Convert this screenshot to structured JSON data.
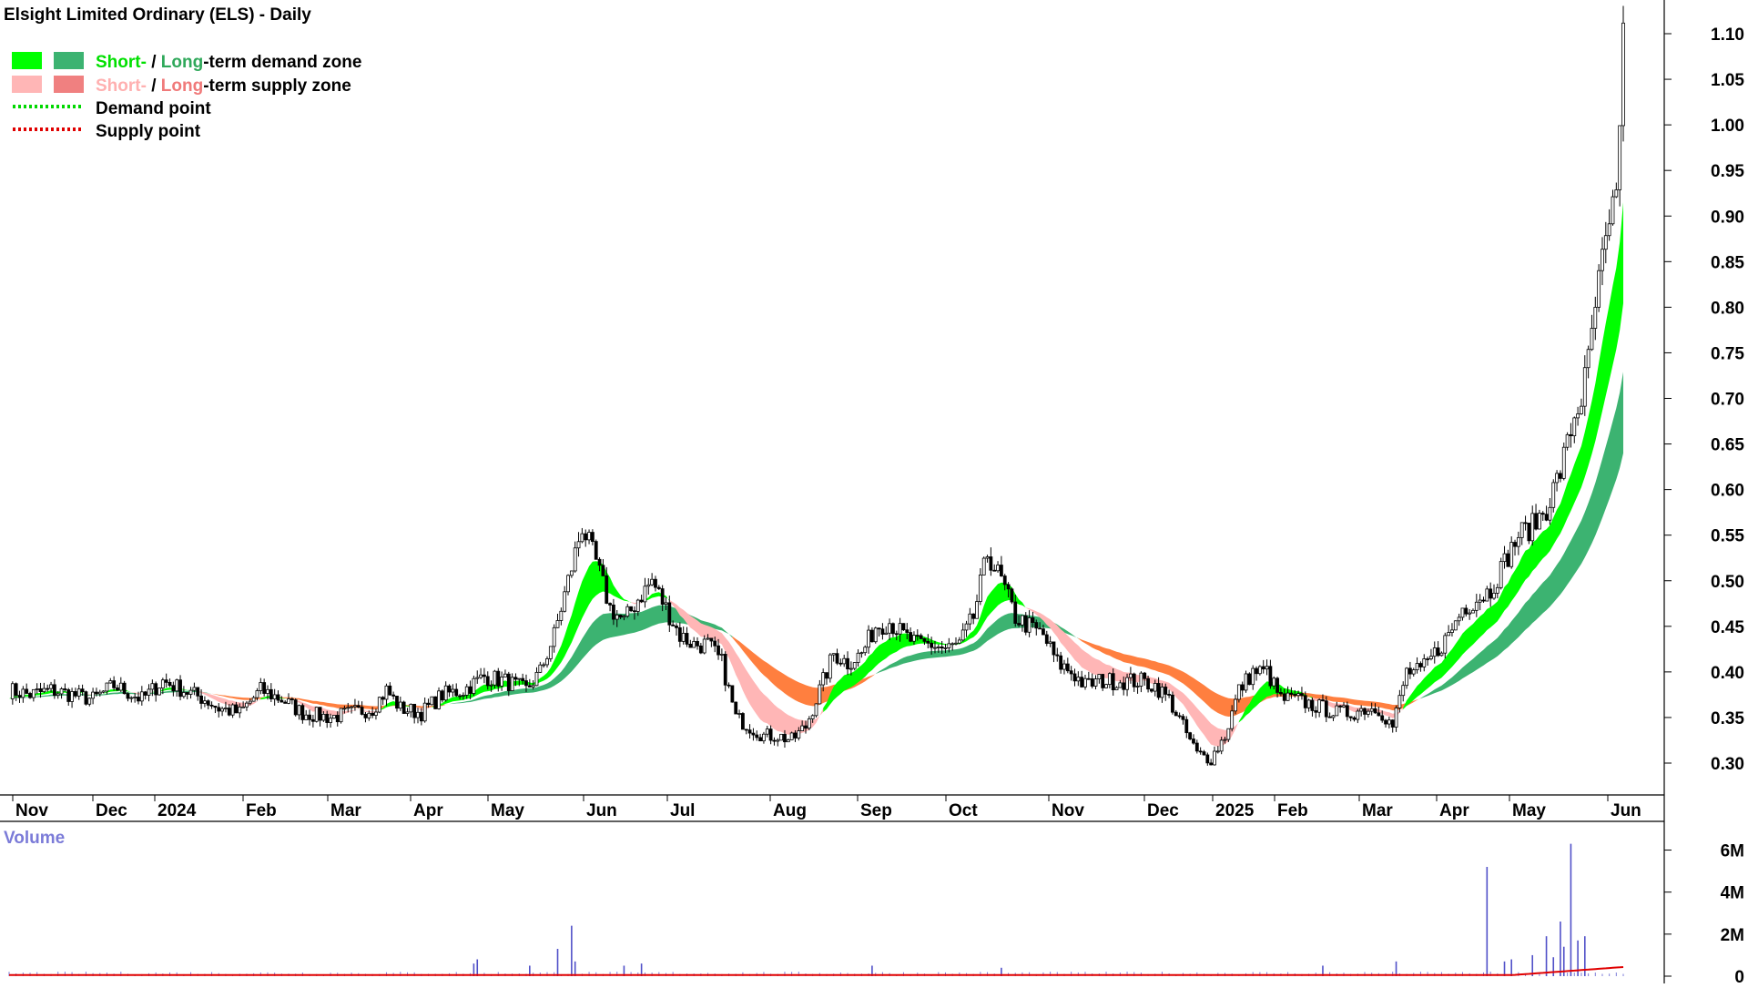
{
  "chart_data": {
    "type": "candlestick",
    "title": "Elsight Limited Ordinary (ELS) - Daily",
    "legend": {
      "placement": "top-left",
      "items": [
        {
          "key": "demand-zone",
          "parts": [
            {
              "text": "Short-",
              "color": "#00e000"
            },
            {
              "text": " / ",
              "color": "#000000"
            },
            {
              "text": "Long",
              "color": "#2fa85a"
            },
            {
              "text": "-term demand zone",
              "color": "#000000"
            }
          ],
          "swatches": [
            "#00ff00",
            "#3cb371"
          ]
        },
        {
          "key": "supply-zone",
          "parts": [
            {
              "text": "Short-",
              "color": "#ffb0b0"
            },
            {
              "text": " / ",
              "color": "#000000"
            },
            {
              "text": "Long",
              "color": "#f07a7a"
            },
            {
              "text": "-term supply zone",
              "color": "#000000"
            }
          ],
          "swatches": [
            "#ffb6b6",
            "#f08080"
          ]
        },
        {
          "key": "demand-point",
          "parts": [
            {
              "text": "Demand point",
              "color": "#000000"
            }
          ],
          "line_color": "#00d800"
        },
        {
          "key": "supply-point",
          "parts": [
            {
              "text": "Supply point",
              "color": "#000000"
            }
          ],
          "line_color": "#e00000"
        }
      ]
    },
    "price_axis": {
      "range": [
        0.25,
        1.12
      ],
      "ticks": [
        "0.30",
        "0.35",
        "0.40",
        "0.45",
        "0.50",
        "0.55",
        "0.60",
        "0.65",
        "0.70",
        "0.75",
        "0.80",
        "0.85",
        "0.90",
        "0.95",
        "1.00",
        "1.05",
        "1.10"
      ],
      "grid": false,
      "side": "right"
    },
    "x_axis": {
      "labels": [
        "Nov",
        "Dec",
        "2024",
        "Feb",
        "Mar",
        "Apr",
        "May",
        "Jun",
        "Jul",
        "Aug",
        "Sep",
        "Oct",
        "Nov",
        "Dec",
        "2025",
        "Feb",
        "Mar",
        "Apr",
        "May",
        "Jun"
      ],
      "bold_labels": [
        "2024",
        "2025"
      ]
    },
    "price_anchors": [
      [
        0,
        0.38
      ],
      [
        6,
        0.375
      ],
      [
        12,
        0.38
      ],
      [
        18,
        0.375
      ],
      [
        24,
        0.37
      ],
      [
        30,
        0.385
      ],
      [
        38,
        0.37
      ],
      [
        44,
        0.39
      ],
      [
        50,
        0.38
      ],
      [
        56,
        0.37
      ],
      [
        60,
        0.36
      ],
      [
        66,
        0.355
      ],
      [
        72,
        0.38
      ],
      [
        78,
        0.37
      ],
      [
        84,
        0.355
      ],
      [
        92,
        0.35
      ],
      [
        98,
        0.355
      ],
      [
        104,
        0.36
      ],
      [
        108,
        0.38
      ],
      [
        112,
        0.36
      ],
      [
        118,
        0.355
      ],
      [
        124,
        0.375
      ],
      [
        130,
        0.38
      ],
      [
        136,
        0.395
      ],
      [
        142,
        0.39
      ],
      [
        148,
        0.38
      ],
      [
        152,
        0.4
      ],
      [
        156,
        0.44
      ],
      [
        160,
        0.5
      ],
      [
        164,
        0.56
      ],
      [
        168,
        0.52
      ],
      [
        172,
        0.47
      ],
      [
        176,
        0.455
      ],
      [
        180,
        0.48
      ],
      [
        184,
        0.5
      ],
      [
        188,
        0.47
      ],
      [
        192,
        0.44
      ],
      [
        196,
        0.43
      ],
      [
        200,
        0.43
      ],
      [
        204,
        0.41
      ],
      [
        208,
        0.35
      ],
      [
        212,
        0.34
      ],
      [
        216,
        0.33
      ],
      [
        220,
        0.33
      ],
      [
        224,
        0.325
      ],
      [
        228,
        0.34
      ],
      [
        232,
        0.38
      ],
      [
        236,
        0.42
      ],
      [
        240,
        0.41
      ],
      [
        244,
        0.42
      ],
      [
        248,
        0.45
      ],
      [
        252,
        0.455
      ],
      [
        256,
        0.44
      ],
      [
        260,
        0.43
      ],
      [
        264,
        0.43
      ],
      [
        268,
        0.425
      ],
      [
        272,
        0.43
      ],
      [
        276,
        0.46
      ],
      [
        280,
        0.53
      ],
      [
        284,
        0.5
      ],
      [
        288,
        0.46
      ],
      [
        292,
        0.45
      ],
      [
        296,
        0.44
      ],
      [
        300,
        0.41
      ],
      [
        304,
        0.4
      ],
      [
        308,
        0.385
      ],
      [
        312,
        0.39
      ],
      [
        316,
        0.39
      ],
      [
        320,
        0.39
      ],
      [
        324,
        0.39
      ],
      [
        328,
        0.385
      ],
      [
        332,
        0.37
      ],
      [
        336,
        0.34
      ],
      [
        340,
        0.31
      ],
      [
        344,
        0.305
      ],
      [
        348,
        0.33
      ],
      [
        352,
        0.38
      ],
      [
        356,
        0.4
      ],
      [
        360,
        0.4
      ],
      [
        364,
        0.37
      ],
      [
        368,
        0.37
      ],
      [
        372,
        0.365
      ],
      [
        376,
        0.36
      ],
      [
        380,
        0.355
      ],
      [
        384,
        0.355
      ],
      [
        388,
        0.36
      ],
      [
        392,
        0.36
      ],
      [
        396,
        0.34
      ],
      [
        400,
        0.4
      ],
      [
        404,
        0.4
      ],
      [
        408,
        0.42
      ],
      [
        412,
        0.44
      ],
      [
        416,
        0.47
      ],
      [
        420,
        0.48
      ],
      [
        424,
        0.49
      ],
      [
        428,
        0.52
      ],
      [
        432,
        0.55
      ],
      [
        436,
        0.56
      ],
      [
        440,
        0.58
      ],
      [
        444,
        0.62
      ],
      [
        448,
        0.68
      ],
      [
        450,
        0.7
      ],
      [
        452,
        0.74
      ],
      [
        454,
        0.8
      ],
      [
        456,
        0.85
      ],
      [
        458,
        0.88
      ],
      [
        460,
        0.92
      ],
      [
        462,
        1.1
      ]
    ],
    "volume_axis": {
      "label": "Volume",
      "ticks": [
        "0",
        "2M",
        "4M",
        "6M"
      ],
      "range_millions": [
        0,
        6.5
      ]
    },
    "volume_spikes": [
      [
        133,
        0.6
      ],
      [
        134,
        0.8
      ],
      [
        149,
        0.5
      ],
      [
        157,
        1.3
      ],
      [
        161,
        2.4
      ],
      [
        162,
        0.7
      ],
      [
        176,
        0.5
      ],
      [
        181,
        0.6
      ],
      [
        247,
        0.5
      ],
      [
        284,
        0.4
      ],
      [
        376,
        0.5
      ],
      [
        397,
        0.7
      ],
      [
        423,
        5.2
      ],
      [
        428,
        0.7
      ],
      [
        430,
        0.8
      ],
      [
        436,
        1.0
      ],
      [
        440,
        1.9
      ],
      [
        442,
        0.9
      ],
      [
        444,
        2.6
      ],
      [
        445,
        1.4
      ],
      [
        447,
        6.3
      ],
      [
        449,
        1.7
      ],
      [
        451,
        1.9
      ]
    ],
    "series": [
      {
        "name": "Short-term demand zone",
        "color": "#00ff00"
      },
      {
        "name": "Long-term demand zone",
        "color": "#3cb371"
      },
      {
        "name": "Short-term supply zone",
        "color": "#ffb6b6"
      },
      {
        "name": "Long-term supply zone",
        "color": "#f08080"
      }
    ]
  }
}
